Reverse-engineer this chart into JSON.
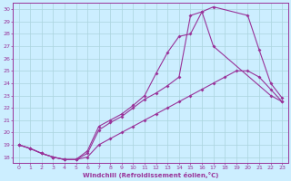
{
  "xlabel": "Windchill (Refroidissement éolien,°C)",
  "xlim": [
    -0.5,
    23.5
  ],
  "ylim": [
    17.5,
    30.5
  ],
  "xticks": [
    0,
    1,
    2,
    3,
    4,
    5,
    6,
    7,
    8,
    9,
    10,
    11,
    12,
    13,
    14,
    15,
    16,
    17,
    18,
    19,
    20,
    21,
    22,
    23
  ],
  "yticks": [
    18,
    19,
    20,
    21,
    22,
    23,
    24,
    25,
    26,
    27,
    28,
    29,
    30
  ],
  "bg_color": "#cceeff",
  "grid_color": "#aad4dd",
  "line_color": "#993399",
  "line1_x": [
    0,
    1,
    2,
    3,
    4,
    5,
    6,
    7,
    8,
    9,
    10,
    11,
    12,
    13,
    14,
    15,
    16,
    17,
    22,
    23
  ],
  "line1_y": [
    19.0,
    18.7,
    18.3,
    18.0,
    17.8,
    17.8,
    18.3,
    20.2,
    20.8,
    21.3,
    22.0,
    22.7,
    23.2,
    23.8,
    24.5,
    29.5,
    29.8,
    27.0,
    23.0,
    22.5
  ],
  "line2_x": [
    0,
    1,
    2,
    3,
    4,
    5,
    6,
    7,
    8,
    9,
    10,
    11,
    12,
    13,
    14,
    15,
    16,
    17,
    20,
    21,
    22,
    23
  ],
  "line2_y": [
    19.0,
    18.7,
    18.3,
    18.0,
    17.8,
    17.8,
    18.5,
    20.5,
    21.0,
    21.5,
    22.2,
    23.0,
    24.8,
    26.5,
    27.8,
    28.0,
    29.8,
    30.2,
    29.5,
    26.7,
    24.0,
    22.8
  ],
  "line3_x": [
    0,
    1,
    2,
    3,
    4,
    5,
    6,
    7,
    8,
    9,
    10,
    11,
    12,
    13,
    14,
    15,
    16,
    17,
    18,
    19,
    20,
    21,
    22,
    23
  ],
  "line3_y": [
    19.0,
    18.7,
    18.3,
    18.0,
    17.8,
    17.8,
    18.0,
    19.0,
    19.5,
    20.0,
    20.5,
    21.0,
    21.5,
    22.0,
    22.5,
    23.0,
    23.5,
    24.0,
    24.5,
    25.0,
    25.0,
    24.5,
    23.5,
    22.5
  ]
}
